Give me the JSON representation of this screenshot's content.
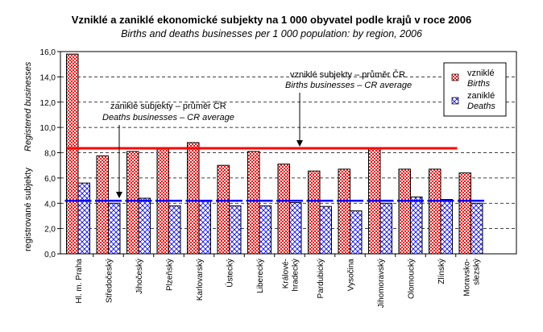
{
  "chart_data": {
    "type": "bar",
    "title": "Vzniklé a zaniklé ekonomické subjekty na 1 000 obyvatel podle krajů v roce 2006",
    "subtitle": "Births and deaths businesses per 1 000 population: by region, 2006",
    "ylabel": "registrované subjekty",
    "ylabel_en": "Registered businesses",
    "ylim": [
      0,
      16
    ],
    "yticks": [
      "0,0",
      "2,0",
      "4,0",
      "6,0",
      "8,0",
      "10,0",
      "12,0",
      "14,0",
      "16,0"
    ],
    "grid": true,
    "legend_position": "top-right",
    "categories": [
      "Hl. m. Praha",
      "Středočeský",
      "Jihočeský",
      "Plzeňský",
      "Karlovarský",
      "Ústecký",
      "Liberecký",
      "Králové-\nhradecký",
      "Pardubický",
      "Vysočina",
      "Jihomoravský",
      "Olomoucký",
      "Zlínský",
      "Moravsko-\nslezský"
    ],
    "series": [
      {
        "name": "vzniklé",
        "name_en": "Births",
        "color": "#ff0000",
        "values": [
          15.8,
          7.75,
          8.1,
          8.3,
          8.8,
          7.0,
          8.1,
          7.1,
          6.55,
          6.7,
          8.35,
          6.7,
          6.7,
          6.4
        ]
      },
      {
        "name": "zaniklé",
        "name_en": "Deaths",
        "color": "#0000ff",
        "values": [
          5.6,
          4.0,
          4.4,
          3.8,
          4.15,
          3.8,
          3.8,
          4.05,
          3.75,
          3.4,
          4.0,
          4.5,
          4.3,
          4.0
        ]
      }
    ],
    "reference_lines": [
      {
        "name": "births_avg",
        "value": 8.35,
        "color": "#ff0000",
        "label": "vzniklé subjekty – průměr ČR",
        "label_en": "Births businesses – CR average"
      },
      {
        "name": "deaths_avg",
        "value": 4.2,
        "color": "#0000ff",
        "label": "zaniklé subjekty – průměr ČR",
        "label_en": "Deaths businesses – CR average"
      }
    ]
  }
}
